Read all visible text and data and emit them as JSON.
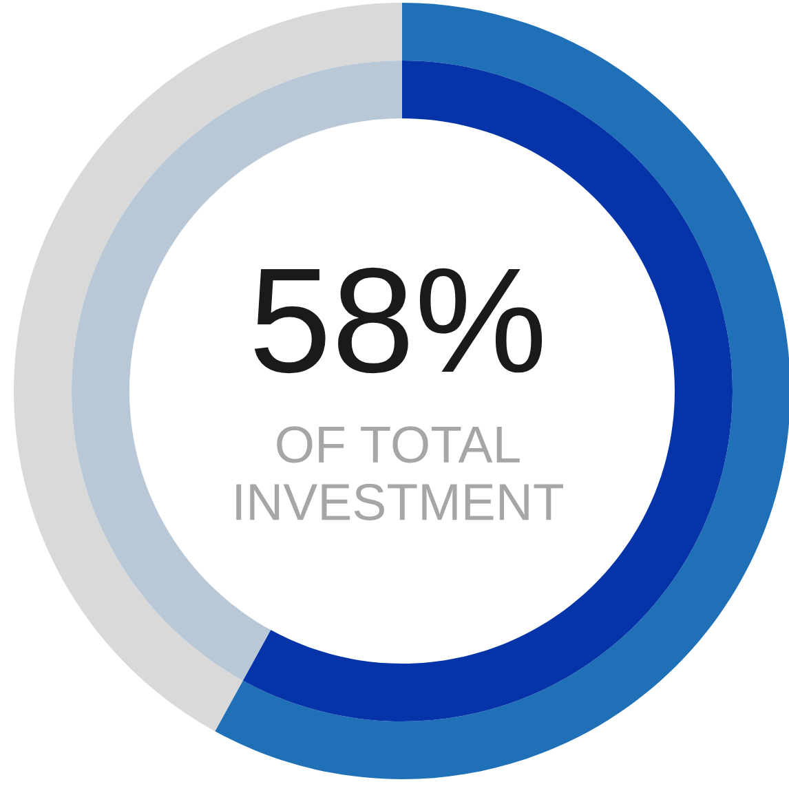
{
  "chart_data": {
    "type": "donut",
    "categories": [
      null,
      null
    ],
    "series": [
      {
        "values": [
          58,
          42
        ],
        "colors": [
          "#2070b8",
          "#d9d9d9"
        ]
      },
      {
        "values": [
          58,
          42
        ],
        "colors": [
          "#0533a8",
          "#b9c8d6"
        ]
      }
    ],
    "annotations": [
      "58%",
      "OF TOTAL\nINVESTMENT"
    ]
  }
}
